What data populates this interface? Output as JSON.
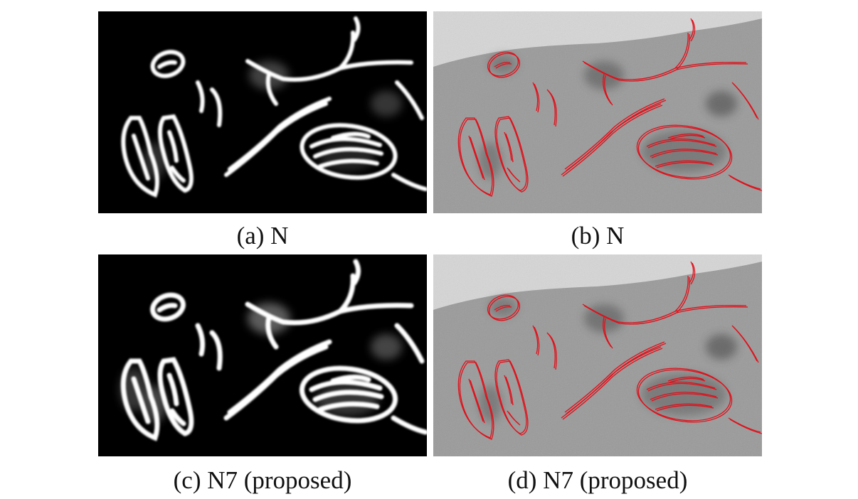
{
  "figure": {
    "panels": [
      {
        "caption": "(a) N",
        "kind": "probability-map"
      },
      {
        "caption": "(b) N",
        "kind": "em-overlay"
      },
      {
        "caption": "(c) N7 (proposed)",
        "kind": "probability-map"
      },
      {
        "caption": "(d) N7 (proposed)",
        "kind": "em-overlay"
      }
    ]
  },
  "colors": {
    "map_background": "#000000",
    "membrane": "#ffffff",
    "em_background": "#9a9a9a",
    "em_outside": "#d6d6d6",
    "contour": "#e0101a"
  }
}
